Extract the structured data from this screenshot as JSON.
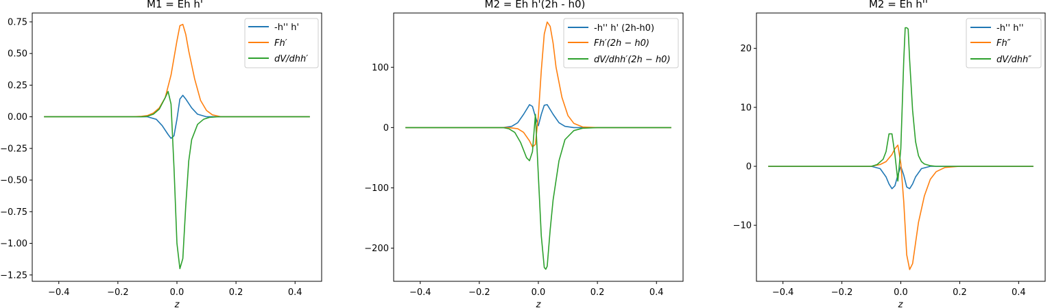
{
  "chart_data": [
    {
      "type": "line",
      "title": "M1 = Eh h'",
      "xlabel": "z",
      "xlim": [
        -0.49,
        0.49
      ],
      "ylim": [
        -1.3,
        0.82
      ],
      "xticks": [
        -0.4,
        -0.2,
        0.0,
        0.2,
        0.4
      ],
      "xtick_labels": [
        "−0.4",
        "−0.2",
        "0.0",
        "0.2",
        "0.4"
      ],
      "yticks": [
        -1.25,
        -1.0,
        -0.75,
        -0.5,
        -0.25,
        0.0,
        0.25,
        0.5,
        0.75
      ],
      "ytick_labels": [
        "−1.25",
        "−1.00",
        "−0.75",
        "−0.50",
        "−0.25",
        "0.00",
        "0.25",
        "0.50",
        "0.75"
      ],
      "legend_position": "top-right",
      "grid": false,
      "series": [
        {
          "name": "-h'' h'",
          "color": "#1f77b4",
          "x": [
            -0.45,
            -0.1,
            -0.07,
            -0.05,
            -0.03,
            -0.02,
            -0.01,
            0.0,
            0.01,
            0.02,
            0.03,
            0.05,
            0.07,
            0.1,
            0.45
          ],
          "y": [
            0.0,
            0.0,
            -0.02,
            -0.07,
            -0.14,
            -0.17,
            -0.15,
            -0.02,
            0.14,
            0.17,
            0.14,
            0.07,
            0.02,
            0.0,
            0.0
          ]
        },
        {
          "name": "Fh′",
          "color": "#ff7f0e",
          "x": [
            -0.45,
            -0.15,
            -0.12,
            -0.1,
            -0.08,
            -0.06,
            -0.04,
            -0.02,
            0.0,
            0.01,
            0.02,
            0.03,
            0.04,
            0.06,
            0.08,
            0.1,
            0.12,
            0.15,
            0.2,
            0.45
          ],
          "y": [
            0.0,
            0.0,
            0.004,
            0.01,
            0.03,
            0.07,
            0.15,
            0.33,
            0.6,
            0.72,
            0.73,
            0.65,
            0.52,
            0.3,
            0.13,
            0.05,
            0.015,
            0.0,
            0.0,
            0.0
          ]
        },
        {
          "name": "dV/dhh′",
          "color": "#2ca02c",
          "x": [
            -0.45,
            -0.12,
            -0.1,
            -0.08,
            -0.06,
            -0.04,
            -0.03,
            -0.02,
            -0.01,
            0.0,
            0.01,
            0.02,
            0.03,
            0.04,
            0.05,
            0.07,
            0.09,
            0.11,
            0.14,
            0.2,
            0.45
          ],
          "y": [
            0.0,
            0.0,
            0.004,
            0.02,
            0.06,
            0.15,
            0.2,
            0.1,
            -0.4,
            -1.0,
            -1.2,
            -1.12,
            -0.7,
            -0.35,
            -0.18,
            -0.06,
            -0.02,
            -0.005,
            0.0,
            0.0,
            0.0
          ]
        }
      ]
    },
    {
      "type": "line",
      "title": "M2 = Eh h'(2h - h0)",
      "xlabel": "z",
      "xlim": [
        -0.49,
        0.49
      ],
      "ylim": [
        -255,
        190
      ],
      "xticks": [
        -0.4,
        -0.2,
        0.0,
        0.2,
        0.4
      ],
      "xtick_labels": [
        "−0.4",
        "−0.2",
        "0.0",
        "0.2",
        "0.4"
      ],
      "yticks": [
        -200,
        -100,
        0,
        100
      ],
      "ytick_labels": [
        "−200",
        "−100",
        "0",
        "100"
      ],
      "legend_position": "top-right",
      "grid": false,
      "series": [
        {
          "name": "-h'' h' (2h-h0)",
          "color": "#1f77b4",
          "x": [
            -0.45,
            -0.12,
            -0.09,
            -0.07,
            -0.05,
            -0.03,
            -0.02,
            -0.01,
            0.0,
            0.01,
            0.02,
            0.03,
            0.05,
            0.07,
            0.09,
            0.12,
            0.45
          ],
          "y": [
            0.0,
            0.0,
            2,
            8,
            22,
            38,
            35,
            18,
            3,
            22,
            37,
            38,
            22,
            8,
            2,
            0.0,
            0.0
          ]
        },
        {
          "name": "Fh′(2h − h0)",
          "color": "#ff7f0e",
          "x": [
            -0.45,
            -0.1,
            -0.07,
            -0.05,
            -0.03,
            -0.02,
            -0.01,
            0.0,
            0.01,
            0.02,
            0.03,
            0.04,
            0.05,
            0.06,
            0.08,
            0.1,
            0.12,
            0.15,
            0.2,
            0.45
          ],
          "y": [
            0.0,
            0.0,
            -2,
            -8,
            -22,
            -32,
            -28,
            20,
            95,
            155,
            175,
            168,
            140,
            100,
            50,
            20,
            7,
            1,
            0.0,
            0.0
          ]
        },
        {
          "name": "dV/dhh′(2h − h0)",
          "color": "#2ca02c",
          "x": [
            -0.45,
            -0.12,
            -0.1,
            -0.08,
            -0.06,
            -0.04,
            -0.03,
            -0.02,
            -0.01,
            0.0,
            0.01,
            0.02,
            0.025,
            0.03,
            0.04,
            0.05,
            0.07,
            0.09,
            0.12,
            0.15,
            0.2,
            0.45
          ],
          "y": [
            0.0,
            0.0,
            -2,
            -8,
            -25,
            -50,
            -55,
            -40,
            22,
            -80,
            -180,
            -232,
            -235,
            -230,
            -170,
            -120,
            -55,
            -20,
            -5,
            -1,
            0.0,
            0.0
          ]
        }
      ]
    },
    {
      "type": "line",
      "title": "M2 = Eh h''",
      "xlabel": "z",
      "xlim": [
        -0.49,
        0.49
      ],
      "ylim": [
        -19.5,
        26
      ],
      "xticks": [
        -0.4,
        -0.2,
        0.0,
        0.2,
        0.4
      ],
      "xtick_labels": [
        "−0.4",
        "−0.2",
        "0.0",
        "0.2",
        "0.4"
      ],
      "yticks": [
        -10,
        0,
        10,
        20
      ],
      "ytick_labels": [
        "−10",
        "0",
        "10",
        "20"
      ],
      "legend_position": "top-right",
      "grid": false,
      "series": [
        {
          "name": "-h'' h''",
          "color": "#1f77b4",
          "x": [
            -0.45,
            -0.1,
            -0.07,
            -0.05,
            -0.04,
            -0.03,
            -0.02,
            -0.01,
            0.0,
            0.01,
            0.02,
            0.03,
            0.04,
            0.05,
            0.07,
            0.1,
            0.45
          ],
          "y": [
            0.0,
            0.0,
            -0.4,
            -1.8,
            -3.0,
            -3.8,
            -3.3,
            -1.5,
            0.0,
            -1.5,
            -3.5,
            -3.8,
            -3.0,
            -1.8,
            -0.4,
            0.0,
            0.0
          ]
        },
        {
          "name": "Fh″",
          "color": "#ff7f0e",
          "x": [
            -0.45,
            -0.1,
            -0.07,
            -0.05,
            -0.03,
            -0.02,
            -0.01,
            0.0,
            0.01,
            0.02,
            0.03,
            0.04,
            0.05,
            0.06,
            0.08,
            0.1,
            0.12,
            0.15,
            0.2,
            0.45
          ],
          "y": [
            0.0,
            0.0,
            0.3,
            0.8,
            2.0,
            3.0,
            3.6,
            0.5,
            -6.0,
            -15.0,
            -17.5,
            -16.5,
            -13.0,
            -9.5,
            -5.0,
            -2.2,
            -0.9,
            -0.2,
            0.0,
            0.0
          ]
        },
        {
          "name": "dV/dhh″",
          "color": "#2ca02c",
          "x": [
            -0.45,
            -0.1,
            -0.08,
            -0.06,
            -0.05,
            -0.04,
            -0.03,
            -0.02,
            -0.01,
            0.0,
            0.01,
            0.015,
            0.02,
            0.025,
            0.03,
            0.04,
            0.05,
            0.06,
            0.07,
            0.08,
            0.1,
            0.12,
            0.15,
            0.45
          ],
          "y": [
            0.0,
            0.0,
            0.3,
            1.2,
            2.5,
            5.5,
            5.5,
            2.0,
            -2.5,
            3.0,
            18.0,
            23.5,
            23.5,
            23.3,
            18.0,
            9.5,
            4.2,
            1.8,
            0.8,
            0.4,
            0.1,
            0.0,
            0.0,
            0.0
          ]
        }
      ]
    }
  ]
}
